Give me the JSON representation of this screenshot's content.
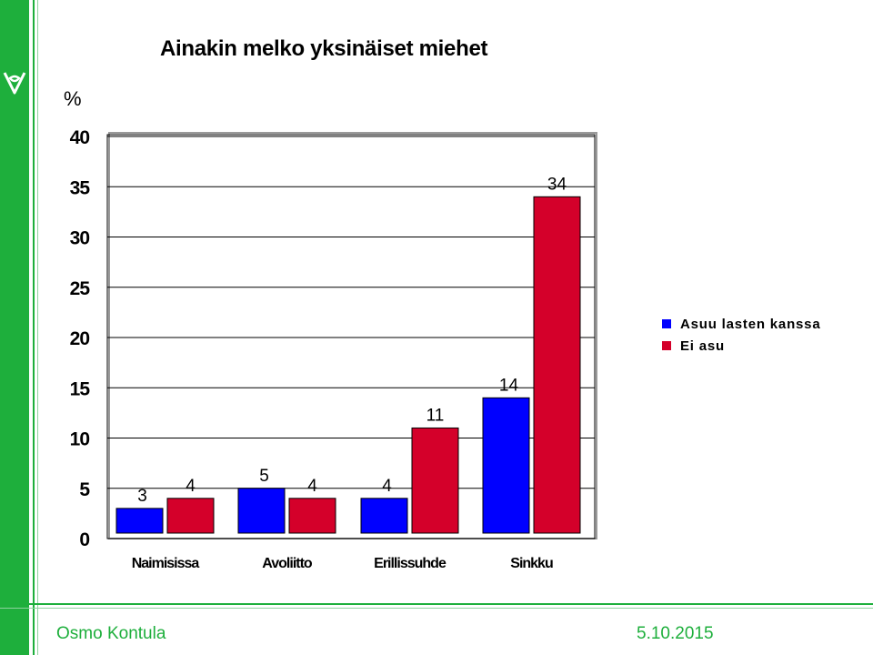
{
  "colors": {
    "brand_green": "#1eaf3c",
    "series_blue": "#0000ff",
    "series_red": "#d4002a"
  },
  "logo_icon": "leaf-emblem-icon",
  "footer": {
    "author": "Osmo Kontula",
    "date": "5.10.2015"
  },
  "chart_data": {
    "type": "bar",
    "title": "Ainakin melko yksinäiset miehet",
    "ylabel": "%",
    "xlabel": "",
    "ylim": [
      0,
      40
    ],
    "yticks": [
      "0",
      "5",
      "10",
      "15",
      "20",
      "25",
      "30",
      "35",
      "40"
    ],
    "grid": true,
    "legend_position": "right",
    "categories": [
      "Naimisissa",
      "Avoliitto",
      "Erillissuhde",
      "Sinkku"
    ],
    "series": [
      {
        "name": "Asuu lasten kanssa",
        "color": "#0000ff",
        "values": [
          3,
          5,
          4,
          14
        ]
      },
      {
        "name": "Ei asu",
        "color": "#d4002a",
        "values": [
          4,
          4,
          11,
          34
        ]
      }
    ],
    "data_labels": true
  }
}
